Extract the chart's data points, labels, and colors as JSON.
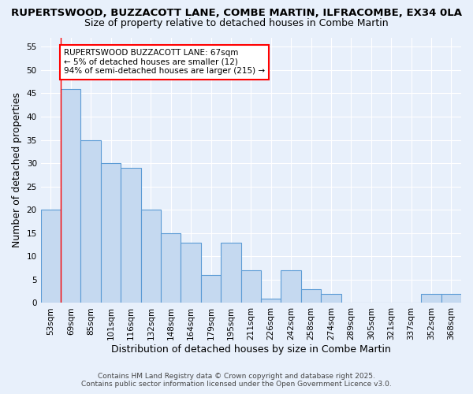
{
  "title1": "RUPERTSWOOD, BUZZACOTT LANE, COMBE MARTIN, ILFRACOMBE, EX34 0LA",
  "title2": "Size of property relative to detached houses in Combe Martin",
  "xlabel": "Distribution of detached houses by size in Combe Martin",
  "ylabel": "Number of detached properties",
  "categories": [
    "53sqm",
    "69sqm",
    "85sqm",
    "101sqm",
    "116sqm",
    "132sqm",
    "148sqm",
    "164sqm",
    "179sqm",
    "195sqm",
    "211sqm",
    "226sqm",
    "242sqm",
    "258sqm",
    "274sqm",
    "289sqm",
    "305sqm",
    "321sqm",
    "337sqm",
    "352sqm",
    "368sqm"
  ],
  "values": [
    20,
    46,
    35,
    30,
    29,
    20,
    15,
    13,
    6,
    13,
    7,
    1,
    7,
    3,
    2,
    0,
    0,
    0,
    0,
    2,
    2
  ],
  "bar_color": "#c5d9f0",
  "bar_edge_color": "#5b9bd5",
  "annotation_line1": "RUPERTSWOOD BUZZACOTT LANE: 67sqm",
  "annotation_line2": "← 5% of detached houses are smaller (12)",
  "annotation_line3": "94% of semi-detached houses are larger (215) →",
  "vline_x_index": 1,
  "ylim": [
    0,
    57
  ],
  "yticks": [
    0,
    5,
    10,
    15,
    20,
    25,
    30,
    35,
    40,
    45,
    50,
    55
  ],
  "footnote1": "Contains HM Land Registry data © Crown copyright and database right 2025.",
  "footnote2": "Contains public sector information licensed under the Open Government Licence v3.0.",
  "background_color": "#e8f0fb",
  "plot_bg_color": "#e8f0fb",
  "grid_color": "#ffffff",
  "title_fontsize": 9.5,
  "subtitle_fontsize": 9,
  "axis_label_fontsize": 9,
  "tick_fontsize": 7.5,
  "annotation_fontsize": 7.5,
  "footnote_fontsize": 6.5
}
